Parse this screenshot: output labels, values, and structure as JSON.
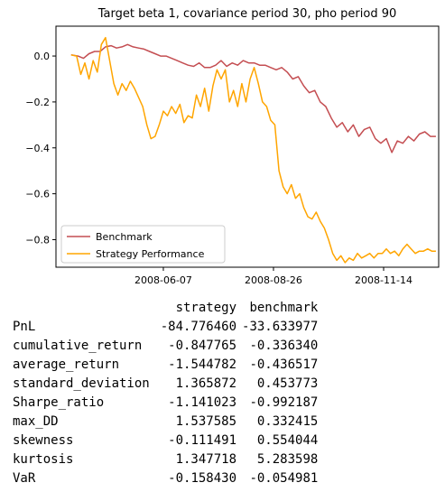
{
  "chart_data": {
    "type": "line",
    "title": "Target beta 1, covariance period 30, pho period 90",
    "xlabel": "",
    "ylabel": "",
    "x_tick_labels": [
      "2008-06-07",
      "2008-08-26",
      "2008-11-14"
    ],
    "x_tick_dates": [
      "2008-06-07",
      "2008-08-26",
      "2008-11-14"
    ],
    "y_ticks": [
      0.0,
      -0.2,
      -0.4,
      -0.6,
      -0.8
    ],
    "y_tick_labels": [
      "0.0",
      "−0.2",
      "−0.4",
      "−0.6",
      "−0.8"
    ],
    "ylim": [
      -0.92,
      0.13
    ],
    "xlim": [
      "2008-03-21",
      "2008-12-24"
    ],
    "legend_position": "lower-left",
    "grid": false,
    "series": [
      {
        "name": "Benchmark",
        "color": "#c44e52",
        "points": [
          [
            "2008-04-01",
            0.005
          ],
          [
            "2008-04-06",
            0.0
          ],
          [
            "2008-04-10",
            -0.01
          ],
          [
            "2008-04-14",
            0.01
          ],
          [
            "2008-04-18",
            0.02
          ],
          [
            "2008-04-22",
            0.02
          ],
          [
            "2008-04-26",
            0.04
          ],
          [
            "2008-04-30",
            0.045
          ],
          [
            "2008-05-04",
            0.035
          ],
          [
            "2008-05-08",
            0.04
          ],
          [
            "2008-05-12",
            0.05
          ],
          [
            "2008-05-16",
            0.04
          ],
          [
            "2008-05-20",
            0.035
          ],
          [
            "2008-05-24",
            0.03
          ],
          [
            "2008-05-28",
            0.02
          ],
          [
            "2008-06-01",
            0.01
          ],
          [
            "2008-06-05",
            0.0
          ],
          [
            "2008-06-09",
            0.0
          ],
          [
            "2008-06-13",
            -0.01
          ],
          [
            "2008-06-17",
            -0.02
          ],
          [
            "2008-06-21",
            -0.03
          ],
          [
            "2008-06-25",
            -0.04
          ],
          [
            "2008-06-29",
            -0.045
          ],
          [
            "2008-07-03",
            -0.03
          ],
          [
            "2008-07-07",
            -0.05
          ],
          [
            "2008-07-11",
            -0.05
          ],
          [
            "2008-07-15",
            -0.04
          ],
          [
            "2008-07-19",
            -0.02
          ],
          [
            "2008-07-23",
            -0.045
          ],
          [
            "2008-07-27",
            -0.03
          ],
          [
            "2008-07-31",
            -0.04
          ],
          [
            "2008-08-04",
            -0.02
          ],
          [
            "2008-08-08",
            -0.03
          ],
          [
            "2008-08-12",
            -0.03
          ],
          [
            "2008-08-16",
            -0.04
          ],
          [
            "2008-08-20",
            -0.04
          ],
          [
            "2008-08-24",
            -0.05
          ],
          [
            "2008-08-28",
            -0.06
          ],
          [
            "2008-09-01",
            -0.05
          ],
          [
            "2008-09-05",
            -0.07
          ],
          [
            "2008-09-09",
            -0.1
          ],
          [
            "2008-09-13",
            -0.09
          ],
          [
            "2008-09-17",
            -0.13
          ],
          [
            "2008-09-21",
            -0.16
          ],
          [
            "2008-09-25",
            -0.15
          ],
          [
            "2008-09-29",
            -0.2
          ],
          [
            "2008-10-03",
            -0.22
          ],
          [
            "2008-10-07",
            -0.27
          ],
          [
            "2008-10-11",
            -0.31
          ],
          [
            "2008-10-15",
            -0.29
          ],
          [
            "2008-10-19",
            -0.33
          ],
          [
            "2008-10-23",
            -0.3
          ],
          [
            "2008-10-27",
            -0.35
          ],
          [
            "2008-10-31",
            -0.32
          ],
          [
            "2008-11-04",
            -0.31
          ],
          [
            "2008-11-08",
            -0.36
          ],
          [
            "2008-11-12",
            -0.38
          ],
          [
            "2008-11-16",
            -0.36
          ],
          [
            "2008-11-20",
            -0.42
          ],
          [
            "2008-11-24",
            -0.37
          ],
          [
            "2008-11-28",
            -0.38
          ],
          [
            "2008-12-02",
            -0.35
          ],
          [
            "2008-12-06",
            -0.37
          ],
          [
            "2008-12-10",
            -0.34
          ],
          [
            "2008-12-14",
            -0.33
          ],
          [
            "2008-12-18",
            -0.35
          ],
          [
            "2008-12-22",
            -0.35
          ]
        ]
      },
      {
        "name": "Strategy Performance",
        "color": "#ffa500",
        "points": [
          [
            "2008-04-01",
            0.005
          ],
          [
            "2008-04-05",
            0.0
          ],
          [
            "2008-04-08",
            -0.08
          ],
          [
            "2008-04-11",
            -0.03
          ],
          [
            "2008-04-14",
            -0.1
          ],
          [
            "2008-04-17",
            -0.02
          ],
          [
            "2008-04-20",
            -0.07
          ],
          [
            "2008-04-23",
            0.05
          ],
          [
            "2008-04-26",
            0.08
          ],
          [
            "2008-04-29",
            -0.02
          ],
          [
            "2008-05-02",
            -0.12
          ],
          [
            "2008-05-05",
            -0.17
          ],
          [
            "2008-05-08",
            -0.12
          ],
          [
            "2008-05-11",
            -0.15
          ],
          [
            "2008-05-14",
            -0.11
          ],
          [
            "2008-05-17",
            -0.14
          ],
          [
            "2008-05-20",
            -0.18
          ],
          [
            "2008-05-23",
            -0.22
          ],
          [
            "2008-05-26",
            -0.3
          ],
          [
            "2008-05-29",
            -0.36
          ],
          [
            "2008-06-01",
            -0.35
          ],
          [
            "2008-06-04",
            -0.3
          ],
          [
            "2008-06-07",
            -0.24
          ],
          [
            "2008-06-10",
            -0.26
          ],
          [
            "2008-06-13",
            -0.22
          ],
          [
            "2008-06-16",
            -0.25
          ],
          [
            "2008-06-19",
            -0.21
          ],
          [
            "2008-06-22",
            -0.29
          ],
          [
            "2008-06-25",
            -0.26
          ],
          [
            "2008-06-28",
            -0.27
          ],
          [
            "2008-07-01",
            -0.17
          ],
          [
            "2008-07-04",
            -0.22
          ],
          [
            "2008-07-07",
            -0.14
          ],
          [
            "2008-07-10",
            -0.24
          ],
          [
            "2008-07-13",
            -0.13
          ],
          [
            "2008-07-16",
            -0.06
          ],
          [
            "2008-07-19",
            -0.1
          ],
          [
            "2008-07-22",
            -0.06
          ],
          [
            "2008-07-25",
            -0.2
          ],
          [
            "2008-07-28",
            -0.15
          ],
          [
            "2008-07-31",
            -0.22
          ],
          [
            "2008-08-03",
            -0.12
          ],
          [
            "2008-08-06",
            -0.2
          ],
          [
            "2008-08-09",
            -0.1
          ],
          [
            "2008-08-12",
            -0.05
          ],
          [
            "2008-08-15",
            -0.12
          ],
          [
            "2008-08-18",
            -0.2
          ],
          [
            "2008-08-21",
            -0.22
          ],
          [
            "2008-08-24",
            -0.28
          ],
          [
            "2008-08-27",
            -0.3
          ],
          [
            "2008-08-30",
            -0.5
          ],
          [
            "2008-09-02",
            -0.57
          ],
          [
            "2008-09-05",
            -0.6
          ],
          [
            "2008-09-08",
            -0.56
          ],
          [
            "2008-09-11",
            -0.62
          ],
          [
            "2008-09-14",
            -0.6
          ],
          [
            "2008-09-17",
            -0.66
          ],
          [
            "2008-09-20",
            -0.7
          ],
          [
            "2008-09-23",
            -0.71
          ],
          [
            "2008-09-26",
            -0.68
          ],
          [
            "2008-09-29",
            -0.72
          ],
          [
            "2008-10-02",
            -0.75
          ],
          [
            "2008-10-05",
            -0.8
          ],
          [
            "2008-10-08",
            -0.86
          ],
          [
            "2008-10-11",
            -0.89
          ],
          [
            "2008-10-14",
            -0.87
          ],
          [
            "2008-10-17",
            -0.9
          ],
          [
            "2008-10-20",
            -0.88
          ],
          [
            "2008-10-23",
            -0.89
          ],
          [
            "2008-10-26",
            -0.86
          ],
          [
            "2008-10-29",
            -0.88
          ],
          [
            "2008-11-01",
            -0.87
          ],
          [
            "2008-11-04",
            -0.86
          ],
          [
            "2008-11-07",
            -0.88
          ],
          [
            "2008-11-10",
            -0.86
          ],
          [
            "2008-11-13",
            -0.86
          ],
          [
            "2008-11-16",
            -0.84
          ],
          [
            "2008-11-19",
            -0.86
          ],
          [
            "2008-11-22",
            -0.85
          ],
          [
            "2008-11-25",
            -0.87
          ],
          [
            "2008-11-28",
            -0.84
          ],
          [
            "2008-12-01",
            -0.82
          ],
          [
            "2008-12-04",
            -0.84
          ],
          [
            "2008-12-07",
            -0.86
          ],
          [
            "2008-12-10",
            -0.85
          ],
          [
            "2008-12-13",
            -0.85
          ],
          [
            "2008-12-16",
            -0.84
          ],
          [
            "2008-12-19",
            -0.85
          ],
          [
            "2008-12-22",
            -0.85
          ]
        ]
      }
    ]
  },
  "stats_table": {
    "columns": [
      "strategy",
      "benchmark"
    ],
    "rows": [
      {
        "label": "PnL",
        "strategy": "-84.776460",
        "benchmark": "-33.633977"
      },
      {
        "label": "cumulative_return",
        "strategy": "-0.847765",
        "benchmark": "-0.336340"
      },
      {
        "label": "average_return",
        "strategy": "-1.544782",
        "benchmark": "-0.436517"
      },
      {
        "label": "standard_deviation",
        "strategy": "1.365872",
        "benchmark": "0.453773"
      },
      {
        "label": "Sharpe_ratio",
        "strategy": "-1.141023",
        "benchmark": "-0.992187"
      },
      {
        "label": "max_DD",
        "strategy": "1.537585",
        "benchmark": "0.332415"
      },
      {
        "label": "skewness",
        "strategy": "-0.111491",
        "benchmark": "0.554044"
      },
      {
        "label": "kurtosis",
        "strategy": "1.347718",
        "benchmark": "5.283598"
      },
      {
        "label": "VaR",
        "strategy": "-0.158430",
        "benchmark": "-0.054981"
      }
    ]
  }
}
